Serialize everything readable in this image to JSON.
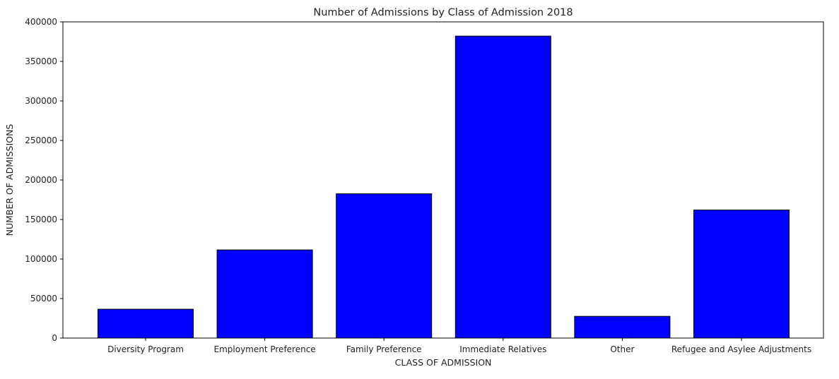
{
  "chart_data": {
    "type": "bar",
    "title": "Number of Admissions by Class of Admission 2018",
    "xlabel": "CLASS OF ADMISSION",
    "ylabel": "NUMBER OF ADMISSIONS",
    "categories": [
      "Diversity Program",
      "Employment Preference",
      "Family Preference",
      "Immediate Relatives",
      "Other",
      "Refugee and Asylee Adjustments"
    ],
    "values": [
      36500,
      111500,
      182500,
      382000,
      27500,
      162000
    ],
    "ylim": [
      0,
      400000
    ],
    "yticks": [
      0,
      50000,
      100000,
      150000,
      200000,
      250000,
      300000,
      350000,
      400000
    ],
    "bar_color": "#0000ff",
    "bar_edge_color": "#000000",
    "grid": false
  }
}
